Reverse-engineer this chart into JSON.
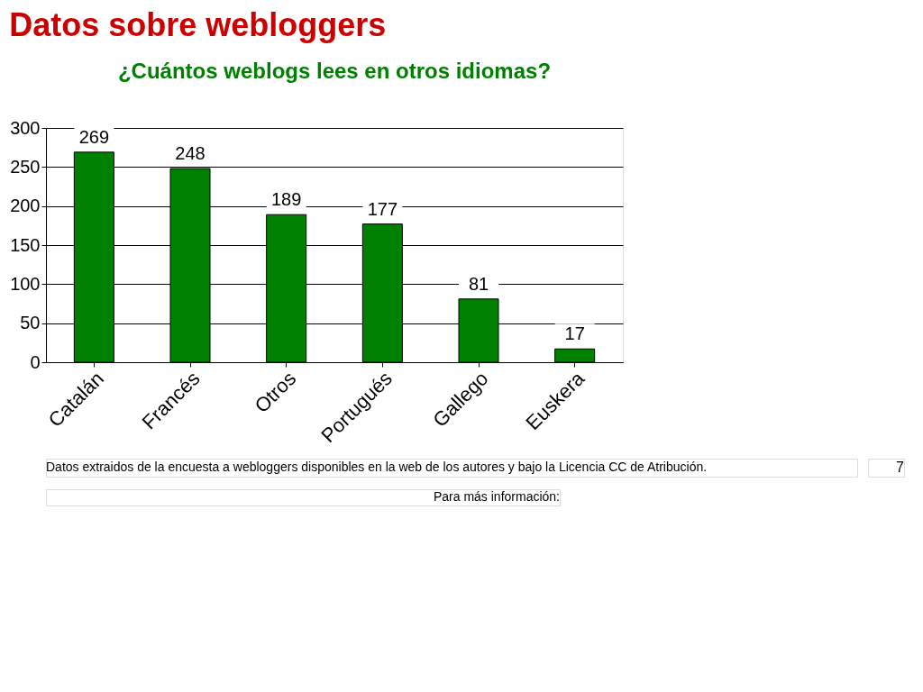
{
  "chart_data": {
    "type": "bar",
    "title": "Datos sobre webloggers",
    "subtitle": "¿Cuántos weblogs lees en otros idiomas?",
    "categories": [
      "Catalán",
      "Francés",
      "Otros",
      "Portugués",
      "Gallego",
      "Euskera"
    ],
    "values": [
      269,
      248,
      189,
      177,
      81,
      17
    ],
    "color": "#008000",
    "ylim": [
      0,
      300
    ],
    "yticks": [
      0,
      50,
      100,
      150,
      200,
      250,
      300
    ],
    "grid": "y",
    "data_labels": true,
    "annotations": [
      "Datos extraidos de la encuesta a webloggers disponibles en la web de los autores y bajo la Licencia CC  de Atribución.",
      "Para más información:",
      "7"
    ]
  }
}
